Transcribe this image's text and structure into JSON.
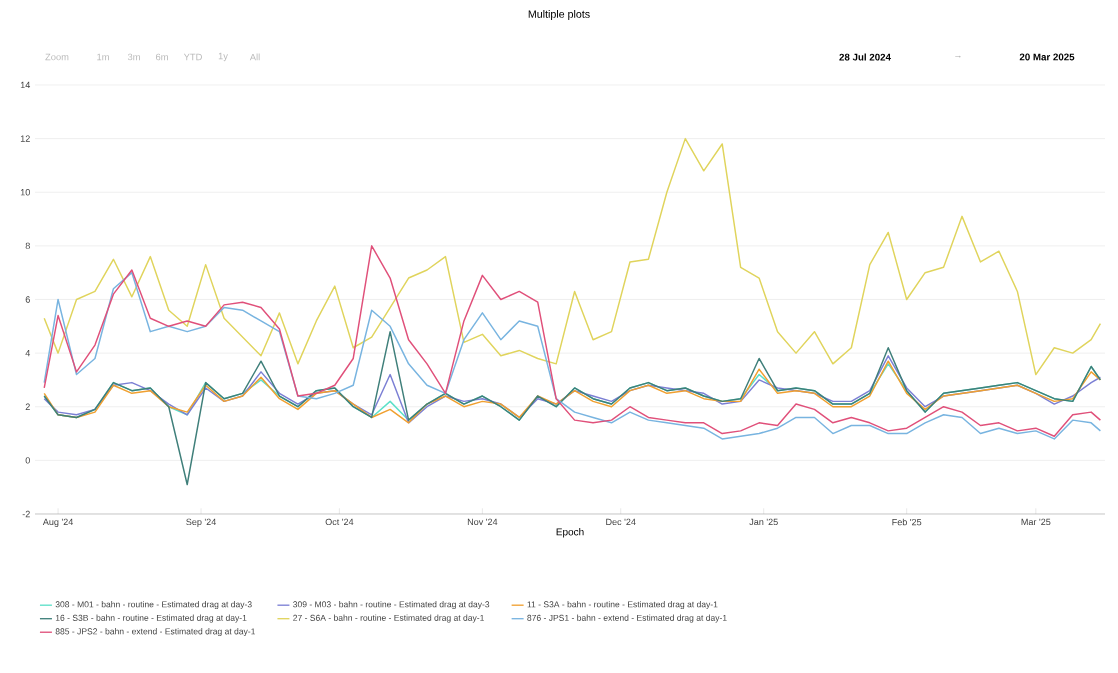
{
  "chart_data": {
    "type": "line",
    "title": "Multiple plots",
    "xlabel": "Epoch",
    "annotations": [
      "Zoom",
      "1m",
      "3m",
      "6m",
      "YTD",
      "1y",
      "All",
      "28 Jul 2024",
      "→",
      "20 Mar 2025"
    ],
    "x": [
      "2024-07-29",
      "2024-08-01",
      "2024-08-05",
      "2024-08-09",
      "2024-08-13",
      "2024-08-17",
      "2024-08-21",
      "2024-08-25",
      "2024-08-29",
      "2024-09-02",
      "2024-09-06",
      "2024-09-10",
      "2024-09-14",
      "2024-09-18",
      "2024-09-22",
      "2024-09-26",
      "2024-09-30",
      "2024-10-04",
      "2024-10-08",
      "2024-10-12",
      "2024-10-16",
      "2024-10-20",
      "2024-10-24",
      "2024-10-28",
      "2024-11-01",
      "2024-11-05",
      "2024-11-09",
      "2024-11-13",
      "2024-11-17",
      "2024-11-21",
      "2024-11-25",
      "2024-11-29",
      "2024-12-03",
      "2024-12-07",
      "2024-12-11",
      "2024-12-15",
      "2024-12-19",
      "2024-12-23",
      "2024-12-27",
      "2024-12-31",
      "2025-01-04",
      "2025-01-08",
      "2025-01-12",
      "2025-01-16",
      "2025-01-20",
      "2025-01-24",
      "2025-01-28",
      "2025-02-01",
      "2025-02-05",
      "2025-02-09",
      "2025-02-13",
      "2025-02-17",
      "2025-02-21",
      "2025-02-25",
      "2025-03-01",
      "2025-03-05",
      "2025-03-09",
      "2025-03-13",
      "2025-03-15"
    ],
    "series": [
      {
        "name": "308 - M01 - bahn - routine - Estimated drag at day-3",
        "color": "#5ce0c8",
        "values": [
          2.4,
          1.7,
          1.6,
          1.9,
          2.9,
          2.6,
          2.7,
          2.0,
          1.7,
          2.9,
          2.3,
          2.5,
          3.0,
          2.4,
          2.0,
          2.6,
          2.7,
          2.0,
          1.6,
          2.2,
          1.5,
          2.1,
          2.5,
          2.1,
          2.4,
          2.0,
          1.5,
          2.4,
          2.0,
          2.7,
          2.3,
          2.1,
          2.7,
          2.9,
          2.6,
          2.7,
          2.4,
          2.2,
          2.3,
          3.2,
          2.6,
          2.7,
          2.6,
          2.1,
          2.1,
          2.5,
          3.6,
          2.6,
          1.8,
          2.5,
          2.6,
          2.7,
          2.8,
          2.9,
          2.6,
          2.3,
          2.2,
          3.5,
          3.0
        ]
      },
      {
        "name": "309 - M03 - bahn - routine - Estimated drag at day-3",
        "color": "#7b7fd4",
        "values": [
          2.3,
          1.8,
          1.7,
          1.9,
          2.8,
          2.9,
          2.6,
          2.1,
          1.7,
          2.7,
          2.2,
          2.4,
          3.3,
          2.5,
          2.1,
          2.5,
          2.6,
          2.1,
          1.7,
          3.2,
          1.4,
          2.0,
          2.4,
          2.2,
          2.3,
          2.1,
          1.6,
          2.3,
          2.1,
          2.6,
          2.4,
          2.2,
          2.6,
          2.8,
          2.7,
          2.6,
          2.5,
          2.1,
          2.2,
          3.0,
          2.7,
          2.6,
          2.5,
          2.2,
          2.2,
          2.6,
          3.9,
          2.7,
          2.0,
          2.4,
          2.5,
          2.6,
          2.7,
          2.8,
          2.5,
          2.1,
          2.4,
          2.9,
          3.1
        ]
      },
      {
        "name": "11 - S3A - bahn - routine - Estimated drag at day-1",
        "color": "#f0a030",
        "values": [
          2.5,
          1.7,
          1.6,
          1.8,
          2.8,
          2.5,
          2.6,
          2.0,
          1.8,
          2.8,
          2.2,
          2.4,
          3.1,
          2.3,
          1.9,
          2.5,
          2.6,
          2.1,
          1.6,
          1.9,
          1.4,
          2.1,
          2.4,
          2.0,
          2.2,
          2.1,
          1.6,
          2.4,
          2.1,
          2.6,
          2.2,
          2.0,
          2.6,
          2.8,
          2.5,
          2.6,
          2.3,
          2.2,
          2.2,
          3.4,
          2.5,
          2.6,
          2.5,
          2.0,
          2.0,
          2.4,
          3.7,
          2.5,
          1.9,
          2.4,
          2.5,
          2.6,
          2.7,
          2.8,
          2.5,
          2.2,
          2.3,
          3.3,
          3.0
        ]
      },
      {
        "name": "16 - S3B - bahn - routine - Estimated drag at day-1",
        "color": "#3f7f7a",
        "values": [
          2.4,
          1.7,
          1.6,
          1.9,
          2.9,
          2.6,
          2.7,
          2.0,
          -0.9,
          2.9,
          2.3,
          2.5,
          3.7,
          2.4,
          2.0,
          2.6,
          2.7,
          2.0,
          1.6,
          4.8,
          1.5,
          2.1,
          2.5,
          2.1,
          2.4,
          2.0,
          1.5,
          2.4,
          2.0,
          2.7,
          2.3,
          2.1,
          2.7,
          2.9,
          2.6,
          2.7,
          2.4,
          2.2,
          2.3,
          3.8,
          2.6,
          2.7,
          2.6,
          2.1,
          2.1,
          2.5,
          4.2,
          2.6,
          1.8,
          2.5,
          2.6,
          2.7,
          2.8,
          2.9,
          2.6,
          2.3,
          2.2,
          3.5,
          3.0
        ]
      },
      {
        "name": "27 - S6A - bahn - routine - Estimated drag at day-1",
        "color": "#e0d45c",
        "values": [
          5.3,
          4.0,
          6.0,
          6.3,
          7.5,
          6.1,
          7.6,
          5.6,
          5.0,
          7.3,
          5.3,
          4.6,
          3.9,
          5.5,
          3.6,
          5.2,
          6.5,
          4.2,
          4.6,
          5.7,
          6.8,
          7.1,
          7.6,
          4.4,
          4.7,
          3.9,
          4.1,
          3.8,
          3.6,
          6.3,
          4.5,
          4.8,
          7.4,
          7.5,
          10.0,
          12.0,
          10.8,
          11.8,
          7.2,
          6.8,
          4.8,
          4.0,
          4.8,
          3.6,
          4.2,
          7.3,
          8.5,
          6.0,
          7.0,
          7.2,
          9.1,
          7.4,
          7.8,
          6.3,
          3.2,
          4.2,
          4.0,
          4.5,
          5.1
        ]
      },
      {
        "name": "876 - JPS1 - bahn - extend - Estimated drag at day-1",
        "color": "#78b4e0",
        "values": [
          2.9,
          6.0,
          3.2,
          3.8,
          6.4,
          7.0,
          4.8,
          5.0,
          4.8,
          5.0,
          5.7,
          5.6,
          5.2,
          4.8,
          2.4,
          2.3,
          2.5,
          2.8,
          5.6,
          5.0,
          3.6,
          2.8,
          2.5,
          4.5,
          5.5,
          4.5,
          5.2,
          5.0,
          2.3,
          1.8,
          1.6,
          1.4,
          1.8,
          1.5,
          1.4,
          1.3,
          1.2,
          0.8,
          0.9,
          1.0,
          1.2,
          1.6,
          1.6,
          1.0,
          1.3,
          1.3,
          1.0,
          1.0,
          1.4,
          1.7,
          1.6,
          1.0,
          1.2,
          1.0,
          1.1,
          0.8,
          1.5,
          1.4,
          1.1
        ]
      },
      {
        "name": "885 - JPS2 - bahn - extend - Estimated drag at day-1",
        "color": "#e0507a",
        "values": [
          2.7,
          5.4,
          3.3,
          4.3,
          6.2,
          7.1,
          5.3,
          5.0,
          5.2,
          5.0,
          5.8,
          5.9,
          5.7,
          4.9,
          2.4,
          2.5,
          2.8,
          3.8,
          8.0,
          6.8,
          4.5,
          3.6,
          2.5,
          5.2,
          6.9,
          6.0,
          6.3,
          5.9,
          2.3,
          1.5,
          1.4,
          1.5,
          2.0,
          1.6,
          1.5,
          1.4,
          1.4,
          1.0,
          1.1,
          1.4,
          1.3,
          2.1,
          1.9,
          1.4,
          1.6,
          1.4,
          1.1,
          1.2,
          1.6,
          2.0,
          1.8,
          1.3,
          1.4,
          1.1,
          1.2,
          0.9,
          1.7,
          1.8,
          1.5
        ]
      }
    ],
    "xlim": [
      "2024-07-27",
      "2025-03-16"
    ],
    "xticks": [
      {
        "value": "2024-08-01",
        "label": "Aug '24"
      },
      {
        "value": "2024-09-01",
        "label": "Sep '24"
      },
      {
        "value": "2024-10-01",
        "label": "Oct '24"
      },
      {
        "value": "2024-11-01",
        "label": "Nov '24"
      },
      {
        "value": "2024-12-01",
        "label": "Dec '24"
      },
      {
        "value": "2025-01-01",
        "label": "Jan '25"
      },
      {
        "value": "2025-02-01",
        "label": "Feb '25"
      },
      {
        "value": "2025-03-01",
        "label": "Mar '25"
      }
    ],
    "ylim": [
      -2,
      14
    ],
    "yticks": [
      -2,
      0,
      2,
      4,
      6,
      8,
      10,
      12,
      14
    ],
    "grid": "y",
    "legend": "bottom"
  }
}
